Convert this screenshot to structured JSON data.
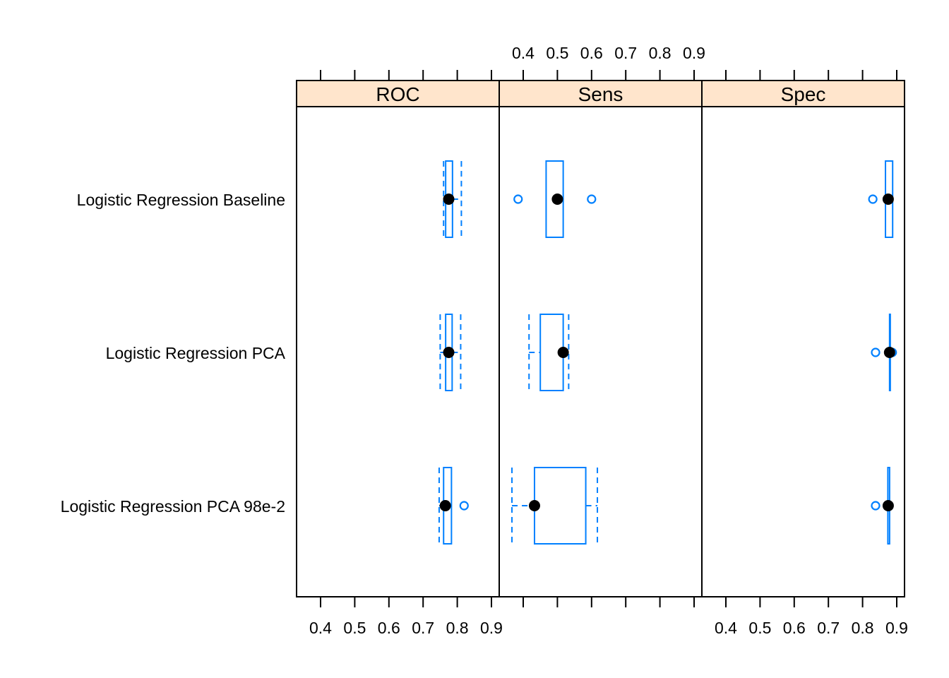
{
  "chart_data": {
    "type": "box",
    "xlim": [
      0.33,
      0.92
    ],
    "x_ticks": [
      0.4,
      0.5,
      0.6,
      0.7,
      0.8,
      0.9
    ],
    "x_tick_labels": [
      "0.4",
      "0.5",
      "0.6",
      "0.7",
      "0.8",
      "0.9"
    ],
    "tick_label_placement": {
      "ROC": "bottom",
      "Sens": "top",
      "Spec": "bottom"
    },
    "panels": [
      "ROC",
      "Sens",
      "Spec"
    ],
    "models": [
      "Logistic Regression Baseline",
      "Logistic Regression PCA",
      "Logistic Regression PCA 98e-2"
    ],
    "colors": {
      "box": "#0080ff",
      "median": "#000000",
      "strip": "#ffe5cc",
      "frame": "#000000"
    },
    "boxes": {
      "ROC": [
        {
          "model": "Logistic Regression Baseline",
          "min": 0.76,
          "q1": 0.766,
          "median": 0.775,
          "q3": 0.786,
          "max": 0.812,
          "outliers": []
        },
        {
          "model": "Logistic Regression PCA",
          "min": 0.75,
          "q1": 0.766,
          "median": 0.775,
          "q3": 0.785,
          "max": 0.81,
          "outliers": []
        },
        {
          "model": "Logistic Regression PCA 98e-2",
          "min": 0.747,
          "q1": 0.76,
          "median": 0.765,
          "q3": 0.783,
          "max": 0.783,
          "outliers": [
            0.82
          ]
        }
      ],
      "Sens": [
        {
          "model": "Logistic Regression Baseline",
          "min": 0.467,
          "q1": 0.467,
          "median": 0.5,
          "q3": 0.517,
          "max": 0.517,
          "outliers": [
            0.385,
            0.6
          ]
        },
        {
          "model": "Logistic Regression PCA",
          "min": 0.417,
          "q1": 0.45,
          "median": 0.517,
          "q3": 0.517,
          "max": 0.533,
          "outliers": []
        },
        {
          "model": "Logistic Regression PCA 98e-2",
          "min": 0.367,
          "q1": 0.433,
          "median": 0.433,
          "q3": 0.583,
          "max": 0.617,
          "outliers": []
        }
      ],
      "Spec": [
        {
          "model": "Logistic Regression Baseline",
          "min": 0.867,
          "q1": 0.867,
          "median": 0.875,
          "q3": 0.888,
          "max": 0.888,
          "outliers": [
            0.83
          ]
        },
        {
          "model": "Logistic Regression PCA",
          "min": 0.879,
          "q1": 0.879,
          "median": 0.879,
          "q3": 0.879,
          "max": 0.879,
          "outliers": [
            0.838,
            0.887
          ]
        },
        {
          "model": "Logistic Regression PCA 98e-2",
          "min": 0.874,
          "q1": 0.874,
          "median": 0.875,
          "q3": 0.879,
          "max": 0.879,
          "outliers": [
            0.838
          ]
        }
      ]
    }
  }
}
